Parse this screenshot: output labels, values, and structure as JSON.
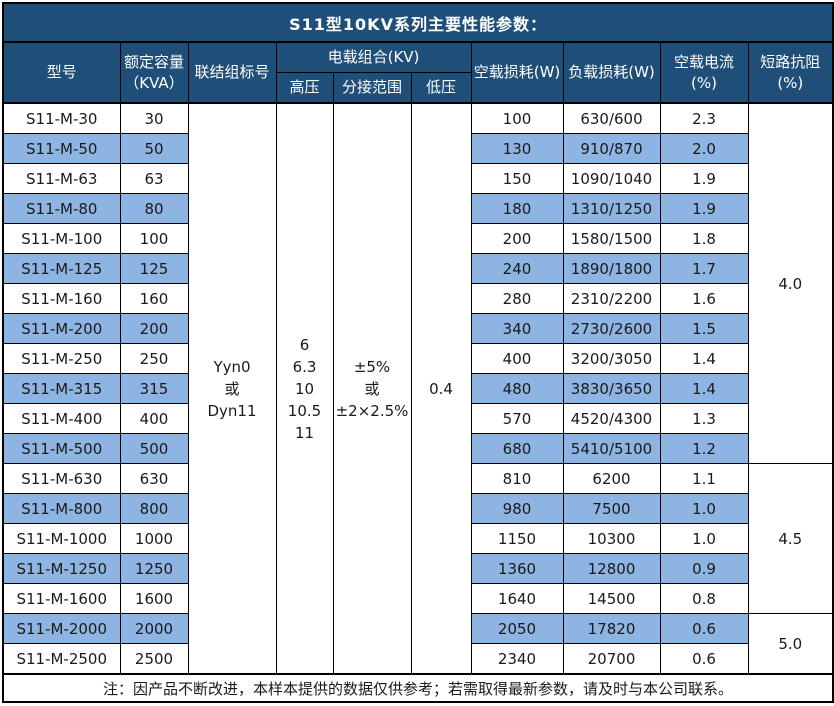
{
  "title": "S11型10KV系列主要性能参数：",
  "header": {
    "model": "型号",
    "capacity": "额定容量\n（KVA）",
    "connection": "联结组标号",
    "voltage_group": "电载组合(KV)",
    "high_voltage": "高压",
    "tap_range": "分接范围",
    "low_voltage": "低压",
    "no_load_loss": "空载损耗(W)",
    "load_loss": "负载损耗(W)",
    "no_load_current": "空载电流(%)",
    "impedance": "短路抗阻(%)"
  },
  "merged": {
    "connection": "Yyn0\n或\nDyn11",
    "high_voltage": "6\n6.3\n10\n10.5\n11",
    "tap_range": "±5%\n或\n±2×2.5%",
    "low_voltage": "0.4"
  },
  "rows": [
    {
      "model": "S11-M-30",
      "capacity": "30",
      "no_load_loss": "100",
      "load_loss": "630/600",
      "no_load_current": "2.3"
    },
    {
      "model": "S11-M-50",
      "capacity": "50",
      "no_load_loss": "130",
      "load_loss": "910/870",
      "no_load_current": "2.0"
    },
    {
      "model": "S11-M-63",
      "capacity": "63",
      "no_load_loss": "150",
      "load_loss": "1090/1040",
      "no_load_current": "1.9"
    },
    {
      "model": "S11-M-80",
      "capacity": "80",
      "no_load_loss": "180",
      "load_loss": "1310/1250",
      "no_load_current": "1.9"
    },
    {
      "model": "S11-M-100",
      "capacity": "100",
      "no_load_loss": "200",
      "load_loss": "1580/1500",
      "no_load_current": "1.8"
    },
    {
      "model": "S11-M-125",
      "capacity": "125",
      "no_load_loss": "240",
      "load_loss": "1890/1800",
      "no_load_current": "1.7"
    },
    {
      "model": "S11-M-160",
      "capacity": "160",
      "no_load_loss": "280",
      "load_loss": "2310/2200",
      "no_load_current": "1.6"
    },
    {
      "model": "S11-M-200",
      "capacity": "200",
      "no_load_loss": "340",
      "load_loss": "2730/2600",
      "no_load_current": "1.5"
    },
    {
      "model": "S11-M-250",
      "capacity": "250",
      "no_load_loss": "400",
      "load_loss": "3200/3050",
      "no_load_current": "1.4"
    },
    {
      "model": "S11-M-315",
      "capacity": "315",
      "no_load_loss": "480",
      "load_loss": "3830/3650",
      "no_load_current": "1.4"
    },
    {
      "model": "S11-M-400",
      "capacity": "400",
      "no_load_loss": "570",
      "load_loss": "4520/4300",
      "no_load_current": "1.3"
    },
    {
      "model": "S11-M-500",
      "capacity": "500",
      "no_load_loss": "680",
      "load_loss": "5410/5100",
      "no_load_current": "1.2"
    },
    {
      "model": "S11-M-630",
      "capacity": "630",
      "no_load_loss": "810",
      "load_loss": "6200",
      "no_load_current": "1.1"
    },
    {
      "model": "S11-M-800",
      "capacity": "800",
      "no_load_loss": "980",
      "load_loss": "7500",
      "no_load_current": "1.0"
    },
    {
      "model": "S11-M-1000",
      "capacity": "1000",
      "no_load_loss": "1150",
      "load_loss": "10300",
      "no_load_current": "1.0"
    },
    {
      "model": "S11-M-1250",
      "capacity": "1250",
      "no_load_loss": "1360",
      "load_loss": "12800",
      "no_load_current": "0.9"
    },
    {
      "model": "S11-M-1600",
      "capacity": "1600",
      "no_load_loss": "1640",
      "load_loss": "14500",
      "no_load_current": "0.8"
    },
    {
      "model": "S11-M-2000",
      "capacity": "2000",
      "no_load_loss": "2050",
      "load_loss": "17820",
      "no_load_current": "0.6"
    },
    {
      "model": "S11-M-2500",
      "capacity": "2500",
      "no_load_loss": "2340",
      "load_loss": "20700",
      "no_load_current": "0.6"
    }
  ],
  "impedance_groups": [
    {
      "value": "4.0",
      "span": 12
    },
    {
      "value": "4.5",
      "span": 5
    },
    {
      "value": "5.0",
      "span": 2
    }
  ],
  "note": "注：因产品不断改进，本样本提供的数据仅供参考；若需取得最新参数，请及时与本公司联系。",
  "colors": {
    "header_bg": "#1F4E79",
    "header_text": "#ffffff",
    "stripe_bg": "#8DB4E2",
    "border": "#000000",
    "text": "#1a1a1a"
  }
}
